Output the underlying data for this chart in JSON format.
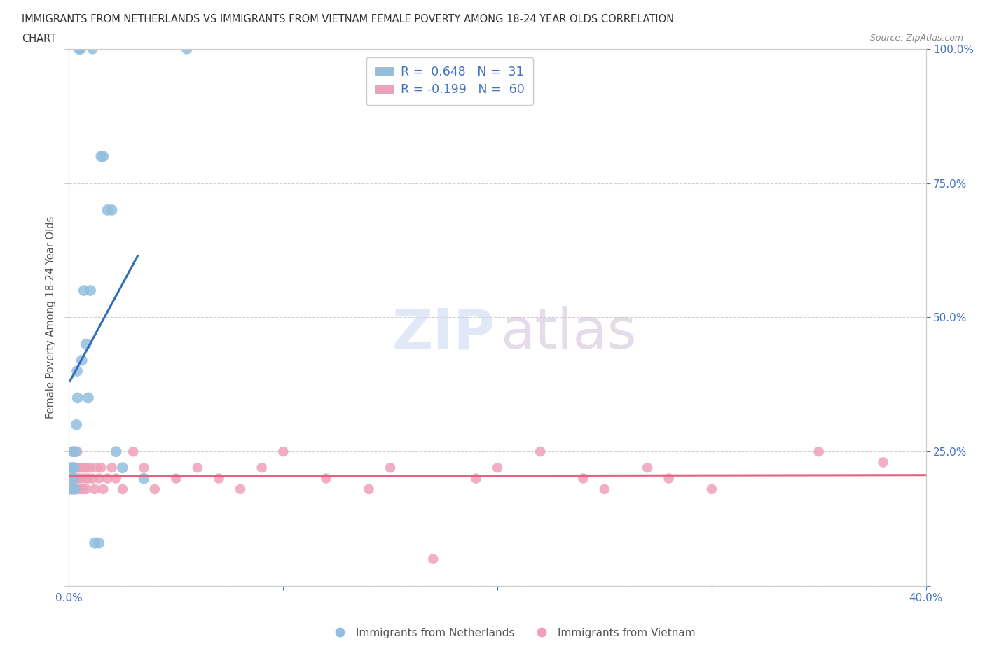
{
  "title_line1": "IMMIGRANTS FROM NETHERLANDS VS IMMIGRANTS FROM VIETNAM FEMALE POVERTY AMONG 18-24 YEAR OLDS CORRELATION",
  "title_line2": "CHART",
  "source": "Source: ZipAtlas.com",
  "ylabel": "Female Poverty Among 18-24 Year Olds",
  "watermark_zip": "ZIP",
  "watermark_atlas": "atlas",
  "blue_R": 0.648,
  "blue_N": 31,
  "pink_R": -0.199,
  "pink_N": 60,
  "blue_color": "#92bfdf",
  "blue_line_color": "#2f6db5",
  "pink_color": "#f0a0b8",
  "pink_line_color": "#e8607e",
  "legend_label_blue": "Immigrants from Netherlands",
  "legend_label_pink": "Immigrants from Vietnam",
  "xlim": [
    0.0,
    40.0
  ],
  "ylim": [
    0.0,
    100.0
  ],
  "axis_color": "#4472c4",
  "grid_color": "#cccccc",
  "title_color": "#333333",
  "source_color": "#888888",
  "blue_x": [
    0.05,
    0.1,
    0.15,
    0.18,
    0.2,
    0.22,
    0.25,
    0.28,
    0.3,
    0.35,
    0.38,
    0.4,
    0.45,
    0.5,
    0.55,
    0.6,
    0.7,
    0.8,
    0.9,
    1.0,
    1.1,
    1.2,
    1.4,
    1.5,
    1.6,
    1.8,
    2.0,
    2.2,
    2.5,
    3.5,
    5.5
  ],
  "blue_y": [
    22,
    18,
    20,
    22,
    25,
    20,
    22,
    18,
    25,
    30,
    40,
    35,
    100,
    100,
    100,
    42,
    55,
    45,
    35,
    55,
    100,
    8,
    8,
    80,
    80,
    70,
    70,
    25,
    22,
    20,
    100
  ],
  "pink_x": [
    0.05,
    0.08,
    0.1,
    0.12,
    0.15,
    0.18,
    0.2,
    0.22,
    0.25,
    0.28,
    0.3,
    0.32,
    0.35,
    0.38,
    0.4,
    0.42,
    0.45,
    0.5,
    0.55,
    0.6,
    0.65,
    0.7,
    0.75,
    0.8,
    0.85,
    0.9,
    1.0,
    1.1,
    1.2,
    1.3,
    1.4,
    1.5,
    1.6,
    1.8,
    2.0,
    2.2,
    2.5,
    3.0,
    3.5,
    4.0,
    5.0,
    6.0,
    7.0,
    8.0,
    9.0,
    10.0,
    12.0,
    14.0,
    15.0,
    17.0,
    19.0,
    20.0,
    22.0,
    24.0,
    25.0,
    27.0,
    28.0,
    30.0,
    35.0,
    38.0
  ],
  "pink_y": [
    22,
    18,
    20,
    25,
    22,
    18,
    20,
    22,
    18,
    20,
    22,
    20,
    18,
    25,
    22,
    20,
    22,
    18,
    20,
    22,
    18,
    22,
    20,
    18,
    22,
    20,
    22,
    20,
    18,
    22,
    20,
    22,
    18,
    20,
    22,
    20,
    18,
    25,
    22,
    18,
    20,
    22,
    20,
    18,
    22,
    25,
    20,
    18,
    22,
    5,
    20,
    22,
    25,
    20,
    18,
    22,
    20,
    18,
    25,
    23
  ],
  "blue_line_x": [
    0.05,
    3.2
  ],
  "pink_line_x": [
    0.0,
    40.0
  ]
}
